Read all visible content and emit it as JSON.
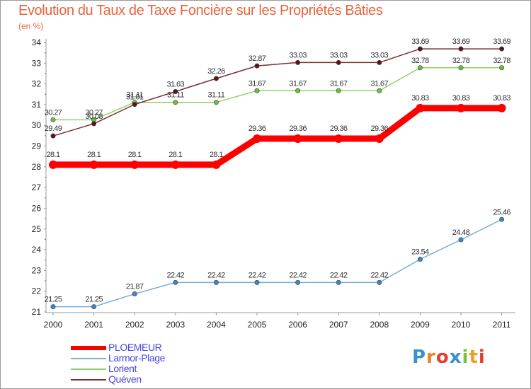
{
  "title": "Evolution du Taux de Taxe Foncière sur les Propriétés Bâties",
  "unit_label": "(en %)",
  "logo_text": "Proxiti",
  "chart_data": {
    "type": "line",
    "title": "Evolution du Taux de Taxe Foncière sur les Propriétés Bâties",
    "ylabel": "(en %)",
    "xlabel": "",
    "x": [
      "2000",
      "2001",
      "2002",
      "2003",
      "2004",
      "2005",
      "2006",
      "2007",
      "2008",
      "2009",
      "2010",
      "2011"
    ],
    "ylim": [
      21,
      34
    ],
    "yticks": [
      "21",
      "22",
      "23",
      "24",
      "25",
      "26",
      "27",
      "28",
      "29",
      "30",
      "31",
      "32",
      "33",
      "34"
    ],
    "grid": false,
    "legend_position": "bottom-left",
    "series": [
      {
        "name": "PLOEMEUR",
        "color": "#ff0000",
        "marker_color": "#ff0000",
        "values": [
          28.1,
          28.1,
          28.1,
          28.1,
          28.1,
          29.36,
          29.36,
          29.36,
          29.36,
          30.83,
          30.83,
          30.83
        ],
        "labels": [
          "28.1",
          "28.1",
          "28.1",
          "28.1",
          "28.1",
          "29.36",
          "29.36",
          "29.36",
          "29.36",
          "30.83",
          "30.83",
          "30.83"
        ]
      },
      {
        "name": "Larmor-Plage",
        "color": "#7aaed6",
        "marker_color": "#3b87c8",
        "values": [
          21.25,
          21.25,
          21.87,
          22.42,
          22.42,
          22.42,
          22.42,
          22.42,
          22.42,
          23.54,
          24.48,
          25.46
        ],
        "labels": [
          "21.25",
          "21.25",
          "21.87",
          "22.42",
          "22.42",
          "22.42",
          "22.42",
          "22.42",
          "22.42",
          "23.54",
          "24.48",
          "25.46"
        ]
      },
      {
        "name": "Lorient",
        "color": "#8fd26a",
        "marker_color": "#6cbf3c",
        "values": [
          30.27,
          30.27,
          31.11,
          31.11,
          31.11,
          31.67,
          31.67,
          31.67,
          31.67,
          32.78,
          32.78,
          32.78
        ],
        "labels": [
          "30.27",
          "30.27",
          "31.11",
          "31.11",
          "31.11",
          "31.67",
          "31.67",
          "31.67",
          "31.67",
          "32.78",
          "32.78",
          "32.78"
        ]
      },
      {
        "name": "Quéven",
        "color": "#7a2f2f",
        "marker_color": "#5a1616",
        "values": [
          29.49,
          30.08,
          31.01,
          31.63,
          32.26,
          32.87,
          33.03,
          33.03,
          33.03,
          33.69,
          33.69,
          33.69
        ],
        "labels": [
          "29.49",
          "30.08",
          "31.01",
          "31.63",
          "32.26",
          "32.87",
          "33.03",
          "33.03",
          "33.03",
          "33.69",
          "33.69",
          "33.69"
        ]
      }
    ]
  }
}
